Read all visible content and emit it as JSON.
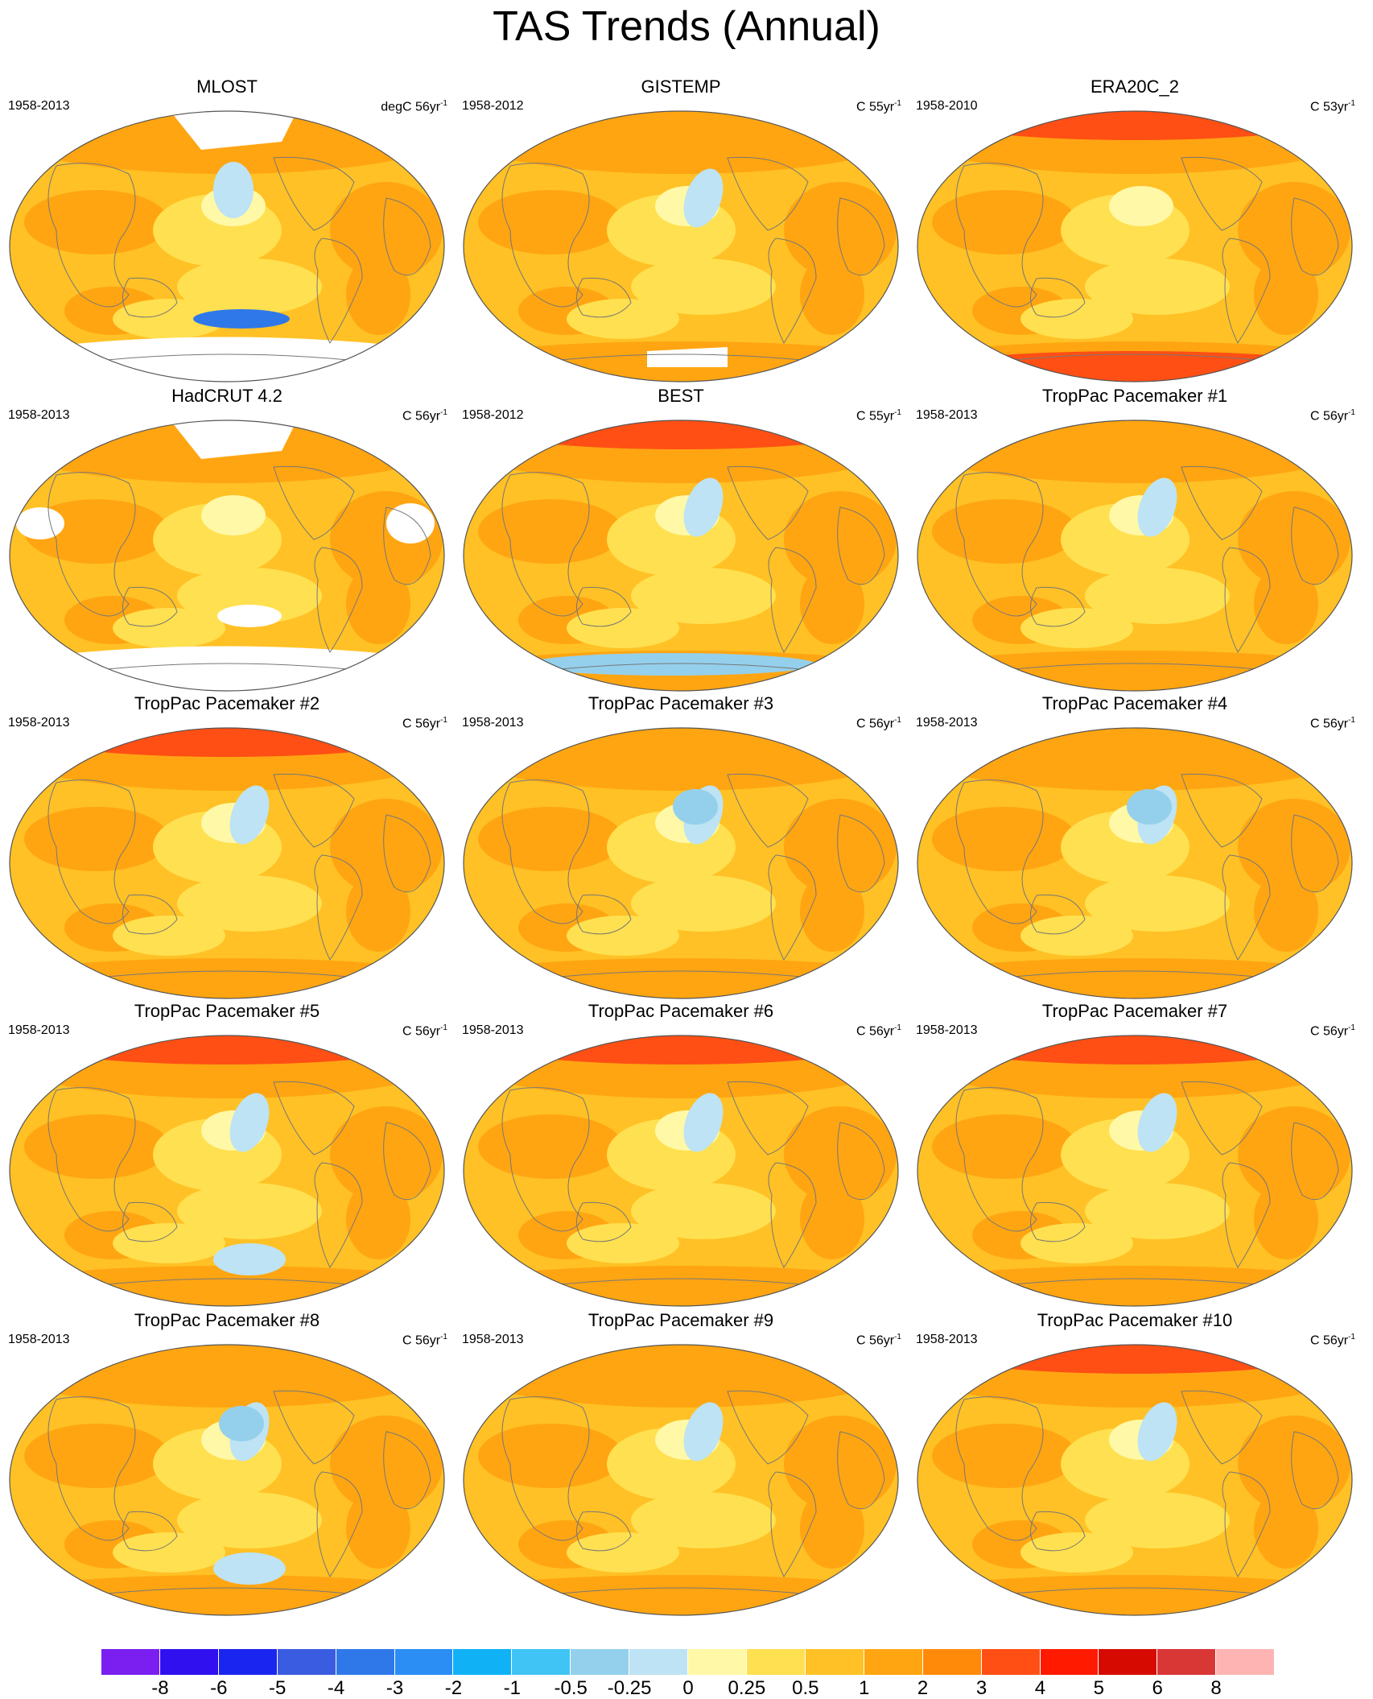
{
  "title": "TAS Trends (Annual)",
  "panels": [
    {
      "title": "MLOST",
      "period": "1958-2013",
      "units": "degC 56yr",
      "units_sup": "-1",
      "missing": "mlost"
    },
    {
      "title": "GISTEMP",
      "period": "1958-2012",
      "units": "C 55yr",
      "units_sup": "-1",
      "missing": "gistemp"
    },
    {
      "title": "ERA20C_2",
      "period": "1958-2010",
      "units": "C 53yr",
      "units_sup": "-1",
      "missing": "none"
    },
    {
      "title": "HadCRUT 4.2",
      "period": "1958-2013",
      "units": "C 56yr",
      "units_sup": "-1",
      "missing": "hadcrut"
    },
    {
      "title": "BEST",
      "period": "1958-2012",
      "units": "C 55yr",
      "units_sup": "-1",
      "missing": "none"
    },
    {
      "title": "TropPac Pacemaker #1",
      "period": "1958-2013",
      "units": "C 56yr",
      "units_sup": "-1",
      "missing": "none"
    },
    {
      "title": "TropPac Pacemaker #2",
      "period": "1958-2013",
      "units": "C 56yr",
      "units_sup": "-1",
      "missing": "none"
    },
    {
      "title": "TropPac Pacemaker #3",
      "period": "1958-2013",
      "units": "C 56yr",
      "units_sup": "-1",
      "missing": "none"
    },
    {
      "title": "TropPac Pacemaker #4",
      "period": "1958-2013",
      "units": "C 56yr",
      "units_sup": "-1",
      "missing": "none"
    },
    {
      "title": "TropPac Pacemaker #5",
      "period": "1958-2013",
      "units": "C 56yr",
      "units_sup": "-1",
      "missing": "none"
    },
    {
      "title": "TropPac Pacemaker #6",
      "period": "1958-2013",
      "units": "C 56yr",
      "units_sup": "-1",
      "missing": "none"
    },
    {
      "title": "TropPac Pacemaker #7",
      "period": "1958-2013",
      "units": "C 56yr",
      "units_sup": "-1",
      "missing": "none"
    },
    {
      "title": "TropPac Pacemaker #8",
      "period": "1958-2013",
      "units": "C 56yr",
      "units_sup": "-1",
      "missing": "none"
    },
    {
      "title": "TropPac Pacemaker #9",
      "period": "1958-2013",
      "units": "C 56yr",
      "units_sup": "-1",
      "missing": "none"
    },
    {
      "title": "TropPac Pacemaker #10",
      "period": "1958-2013",
      "units": "C 56yr",
      "units_sup": "-1",
      "missing": "none"
    }
  ],
  "colorbar": {
    "colors": [
      "#7b1ff0",
      "#3010ee",
      "#1a25f0",
      "#3a5ce0",
      "#2f78ea",
      "#2a8ef5",
      "#10b2f5",
      "#40c4f5",
      "#94d0ec",
      "#bde3f4",
      "#fff8a6",
      "#ffe050",
      "#ffc125",
      "#ffa512",
      "#ff8a0a",
      "#ff4f14",
      "#ff1a00",
      "#d60a00",
      "#d93636",
      "#ffb4b4"
    ],
    "labels": [
      "-8",
      "-6",
      "-5",
      "-4",
      "-3",
      "-2",
      "-1",
      "-0.5",
      "-0.25",
      "0",
      "0.25",
      "0.5",
      "1",
      "2",
      "3",
      "4",
      "5",
      "6",
      "8"
    ]
  }
}
